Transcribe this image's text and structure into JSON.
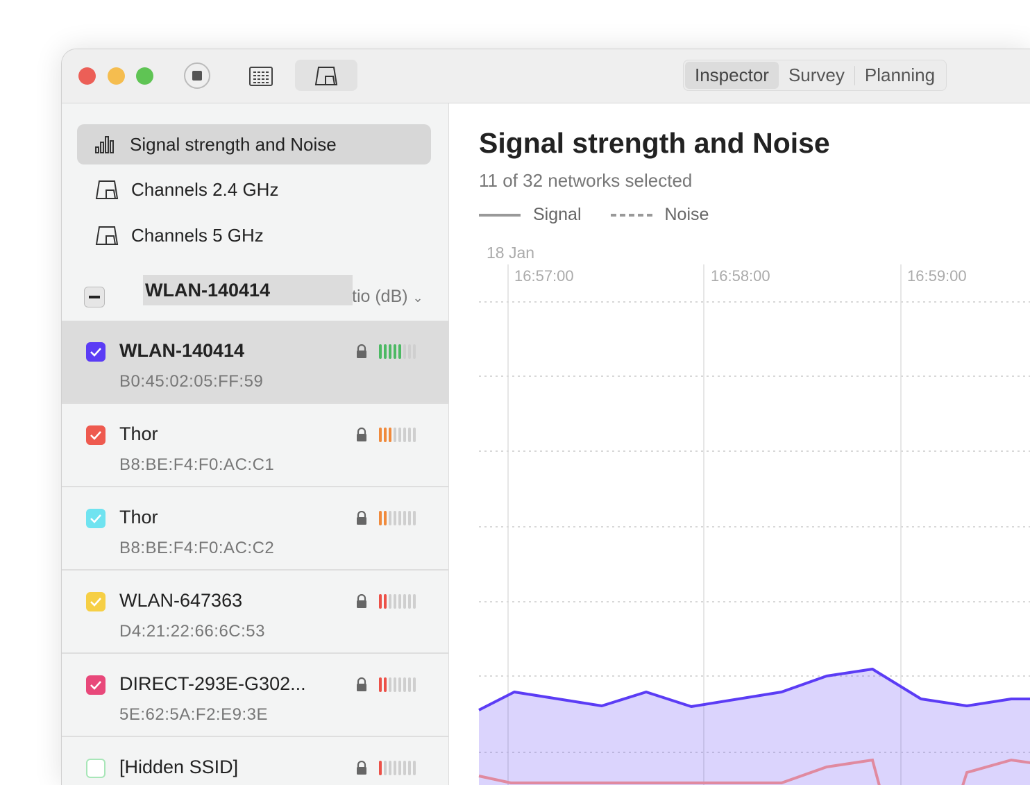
{
  "toolbar": {
    "segments": [
      "Inspector",
      "Survey",
      "Planning"
    ],
    "active_segment": "Inspector"
  },
  "sidebar": {
    "nav": [
      {
        "label": "Signal strength and Noise",
        "icon": "bar-chart-icon",
        "active": true
      },
      {
        "label": "Channels 2.4 GHz",
        "icon": "channel-icon"
      },
      {
        "label": "Channels 5 GHz",
        "icon": "channel-icon"
      }
    ],
    "list_header": {
      "overlay_label": "WLAN-140414",
      "sort_label": "tio (dB)"
    },
    "networks": [
      {
        "name": "WLAN-140414",
        "mac": "B0:45:02:05:FF:59",
        "color": "#5b3cf5",
        "checked": true,
        "bars": 5,
        "bar_color": "#4cb963",
        "selected": true
      },
      {
        "name": "Thor",
        "mac": "B8:BE:F4:F0:AC:C1",
        "color": "#ee5a4f",
        "checked": true,
        "bars": 3,
        "bar_color": "#f08a3c"
      },
      {
        "name": "Thor",
        "mac": "B8:BE:F4:F0:AC:C2",
        "color": "#6fe3f0",
        "checked": true,
        "bars": 2,
        "bar_color": "#f08a3c"
      },
      {
        "name": "WLAN-647363",
        "mac": "D4:21:22:66:6C:53",
        "color": "#f6cf45",
        "checked": true,
        "bars": 2,
        "bar_color": "#ec5148"
      },
      {
        "name": "DIRECT-293E-G302...",
        "mac": "5E:62:5A:F2:E9:3E",
        "color": "#e8487a",
        "checked": true,
        "bars": 2,
        "bar_color": "#ec5148"
      },
      {
        "name": "[Hidden SSID]",
        "mac": "",
        "color": "#a8e6b8",
        "checked": false,
        "bars": 1,
        "bar_color": "#ec5148"
      }
    ]
  },
  "main": {
    "title": "Signal strength and Noise",
    "subtitle": "11 of 32 networks selected",
    "legend": {
      "signal": "Signal",
      "noise": "Noise"
    },
    "date": "18 Jan",
    "times": [
      "16:57:00",
      "16:58:00",
      "16:59:00"
    ],
    "signal_color": "#5b3cf5",
    "noise_color": "#e08aa0"
  }
}
